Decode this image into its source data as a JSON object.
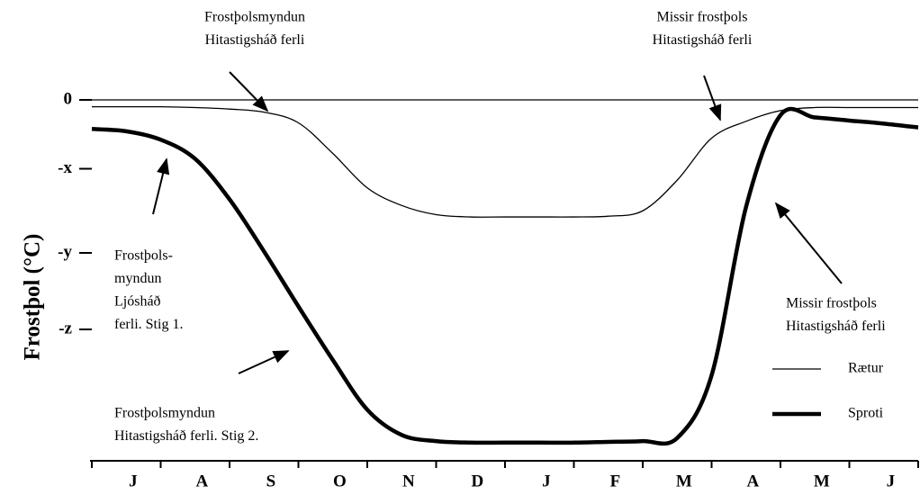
{
  "chart_data": {
    "type": "line",
    "y_label": "Frostþol (°C)",
    "categories": [
      "J",
      "A",
      "S",
      "O",
      "N",
      "D",
      "J",
      "F",
      "M",
      "A",
      "M",
      "J"
    ],
    "x": [
      0,
      0.5,
      1,
      1.5,
      2,
      2.5,
      3,
      3.5,
      4,
      4.5,
      5,
      5.5,
      6,
      6.5,
      7,
      7.5,
      8,
      8.5,
      9,
      9.5,
      10,
      10.5,
      11,
      11.5,
      12
    ],
    "xlim": [
      0,
      12
    ],
    "ylim": [
      -4.6,
      0.15
    ],
    "yticks": [
      0,
      {
        "value": -0.9,
        "label": "-x"
      },
      {
        "value": -2,
        "label": "-y"
      },
      {
        "value": -3,
        "label": "-z"
      }
    ],
    "series": [
      {
        "name": "Rætur",
        "color": "#000000",
        "width": 1.3,
        "values": [
          -0.09,
          -0.09,
          -0.09,
          -0.1,
          -0.12,
          -0.16,
          -0.3,
          -0.7,
          -1.15,
          -1.38,
          -1.5,
          -1.53,
          -1.53,
          -1.53,
          -1.53,
          -1.52,
          -1.45,
          -1.05,
          -0.5,
          -0.28,
          -0.14,
          -0.1,
          -0.1,
          -0.1,
          -0.1
        ]
      },
      {
        "name": "Sproti",
        "color": "#000000",
        "width": 4.5,
        "values": [
          -0.38,
          -0.41,
          -0.52,
          -0.77,
          -1.3,
          -1.98,
          -2.7,
          -3.4,
          -4.05,
          -4.38,
          -4.46,
          -4.48,
          -4.48,
          -4.48,
          -4.48,
          -4.47,
          -4.46,
          -4.42,
          -3.6,
          -1.4,
          -0.2,
          -0.23,
          -0.27,
          -0.31,
          -0.36
        ]
      }
    ],
    "annotations": [
      {
        "text": [
          "Frostþolsmyndun",
          "Hitastigsháð ferli"
        ]
      },
      {
        "text": [
          "Missir frostþols",
          "Hitastigsháð ferli"
        ]
      },
      {
        "text": [
          "Frostþols-",
          "myndun",
          "Ljósháð",
          "ferli. Stig 1."
        ]
      },
      {
        "text": [
          "Frostþolsmyndun",
          "Hitastigsháð ferli. Stig 2."
        ]
      },
      {
        "text": [
          "Missir frostþols",
          "Hitastigsháð ferli"
        ]
      }
    ]
  }
}
